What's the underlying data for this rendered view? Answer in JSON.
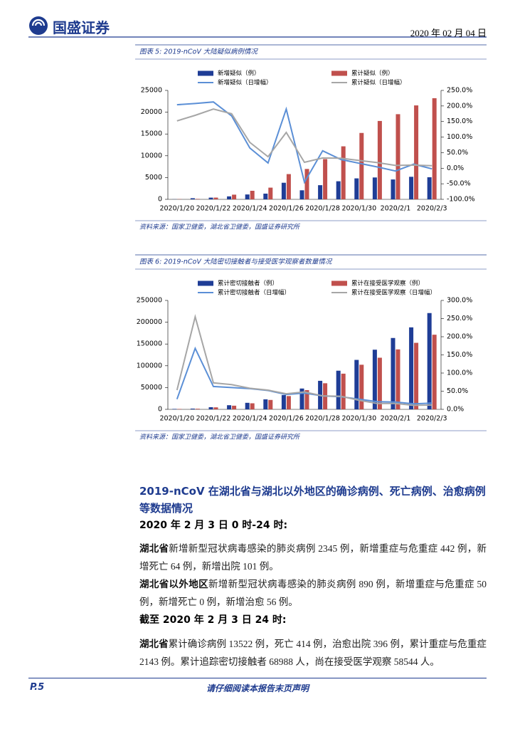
{
  "header": {
    "logo": "国盛证券",
    "date": "2020 年 02 月 04 日"
  },
  "chart_data": [
    {
      "type": "combo",
      "title": "图表 5: 2019-nCoV 大陆疑似病例情况",
      "source": "资料来源：国家卫健委，湖北省卫健委，国盛证券研究所",
      "categories": [
        "2020/1/20",
        null,
        "2020/1/22",
        null,
        "2020/1/24",
        null,
        "2020/1/26",
        null,
        "2020/1/28",
        null,
        "2020/1/30",
        null,
        "2020/2/1",
        null,
        "2020/2/3"
      ],
      "series": [
        {
          "name": "新增疑似（例）",
          "type": "bar",
          "color": "#1f3d96",
          "values": [
            27,
            257,
            393,
            680,
            1118,
            1309,
            3806,
            2077,
            3248,
            4148,
            4812,
            5019,
            4562,
            5173,
            5072
          ]
        },
        {
          "name": "累计疑似（例）",
          "type": "bar",
          "color": "#c0504d",
          "values": [
            54,
            100,
            400,
            1072,
            1965,
            2684,
            5794,
            6973,
            9239,
            12167,
            15238,
            17988,
            19544,
            21558,
            23214
          ]
        },
        {
          "name": "新增疑似（日增幅）",
          "type": "line",
          "axis": "y2",
          "color": "#5b8fd6",
          "values": [
            204,
            208,
            213,
            168,
            65,
            17,
            190,
            -45,
            56,
            28,
            16,
            4,
            -9,
            13,
            -2
          ]
        },
        {
          "name": "累计疑似（日增幅）",
          "type": "line",
          "axis": "y2",
          "color": "#a6a6a6",
          "values": [
            152,
            170,
            190,
            175,
            83,
            37,
            115,
            19,
            33,
            32,
            25,
            18,
            9,
            10,
            8
          ]
        }
      ],
      "ylim": [
        0,
        25000
      ],
      "yticks": [
        0,
        5000,
        10000,
        15000,
        20000,
        25000
      ],
      "y2lim": [
        -100,
        250
      ],
      "y2ticks": [
        {
          "value": -100,
          "label": "-100.0%"
        },
        {
          "value": -50,
          "label": "-50.0%"
        },
        {
          "value": 0,
          "label": "0.0%"
        },
        {
          "value": 50,
          "label": "50.0%"
        },
        {
          "value": 100,
          "label": "100.0%"
        },
        {
          "value": 150,
          "label": "150.0%"
        },
        {
          "value": 200,
          "label": "200.0%"
        },
        {
          "value": 250,
          "label": "250.0%"
        }
      ]
    },
    {
      "type": "combo",
      "title": "图表 6: 2019-nCoV 大陆密切接触者与接受医学观察者数量情况",
      "source": "资料来源：国家卫健委，湖北省卫健委，国盛证券研究所",
      "categories": [
        "2020/1/20",
        null,
        "2020/1/22",
        null,
        "2020/1/24",
        null,
        "2020/1/26",
        null,
        "2020/1/28",
        null,
        "2020/1/30",
        null,
        "2020/2/1",
        null,
        "2020/2/3"
      ],
      "series": [
        {
          "name": "累计密切接触者（例）",
          "type": "bar",
          "color": "#1f3d96",
          "values": [
            1000,
            1700,
            5000,
            9500,
            15000,
            23000,
            32800,
            47800,
            65500,
            88700,
            113500,
            136900,
            163800,
            188200,
            221000
          ]
        },
        {
          "name": "累计在接受医学观察（例）",
          "type": "bar",
          "color": "#c0504d",
          "values": [
            900,
            1400,
            4600,
            8400,
            13900,
            21600,
            30500,
            44100,
            59900,
            81900,
            102400,
            118500,
            137600,
            152700,
            171300
          ]
        },
        {
          "name": "累计密切接触者（日增幅）",
          "type": "line",
          "axis": "y2",
          "color": "#5b8fd6",
          "values": [
            28,
            168,
            63,
            60,
            57,
            52,
            41,
            45,
            37,
            35,
            28,
            21,
            20,
            15,
            17
          ]
        },
        {
          "name": "累计在接受医学观察（日增幅）",
          "type": "line",
          "axis": "y2",
          "color": "#a6a6a6",
          "values": [
            53,
            255,
            73,
            68,
            58,
            53,
            43,
            48,
            37,
            36,
            25,
            16,
            16,
            11,
            12
          ]
        }
      ],
      "ylim": [
        0,
        250000
      ],
      "yticks": [
        0,
        50000,
        100000,
        150000,
        200000,
        250000
      ],
      "y2lim": [
        0,
        300
      ],
      "y2ticks": [
        {
          "value": 0,
          "label": "0.0%"
        },
        {
          "value": 50,
          "label": "50.0%"
        },
        {
          "value": 100,
          "label": "100.0%"
        },
        {
          "value": 150,
          "label": "150.0%"
        },
        {
          "value": 200,
          "label": "200.0%"
        },
        {
          "value": 250,
          "label": "250.0%"
        },
        {
          "value": 300,
          "label": "300.0%"
        }
      ]
    }
  ],
  "section": {
    "heading": "2019-nCoV 在湖北省与湖北以外地区的确诊病例、死亡病例、治愈病例等数据情况",
    "subheading1": "2020 年 2 月 3 日 0 时-24 时:",
    "subheading2": "截至 2020 年 2 月 3 日 24 时:"
  },
  "paragraphs": [
    {
      "lead": "湖北省",
      "text": "新增新型冠状病毒感染的肺炎病例 2345 例，新增重症与危重症 442 例，新增死亡 64 例，新增出院 101 例。"
    },
    {
      "lead": "湖北省以外地区",
      "text": "新增新型冠状病毒感染的肺炎病例 890 例，新增重症与危重症 50 例，新增死亡 0 例，新增治愈 56 例。"
    },
    {
      "lead": "湖北省",
      "text": "累计确诊病例 13522 例，死亡 414 例，治愈出院 396 例，累计重症与危重症 2143 例。累计追踪密切接触者 68988 人，尚在接受医学观察 58544 人。"
    }
  ],
  "footer": {
    "page": "P.5",
    "notice": "请仔细阅读本报告末页声明"
  }
}
